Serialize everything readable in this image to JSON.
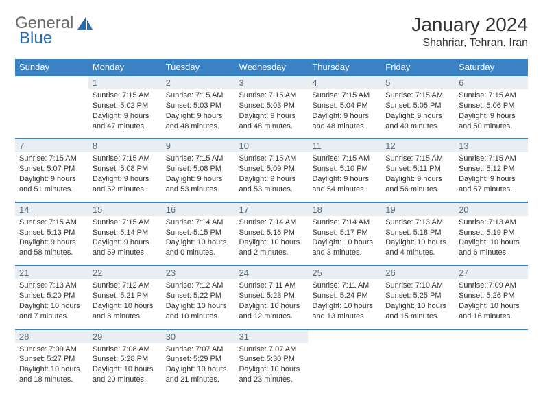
{
  "brand": {
    "part1": "General",
    "part2": "Blue",
    "color1": "#6b6b6b",
    "color2": "#2a6bb0"
  },
  "title": "January 2024",
  "location": "Shahriar, Tehran, Iran",
  "theme": {
    "header_bg": "#3b82c4",
    "header_fg": "#ffffff",
    "daynum_bg": "#e8eef2",
    "daynum_fg": "#5a6b7a",
    "row_border": "#3b82c4",
    "text_color": "#333333",
    "cell_font_size": 11,
    "header_font_size": 13,
    "title_font_size": 28,
    "location_font_size": 16
  },
  "weekdays": [
    "Sunday",
    "Monday",
    "Tuesday",
    "Wednesday",
    "Thursday",
    "Friday",
    "Saturday"
  ],
  "weeks": [
    [
      null,
      {
        "n": "1",
        "sr": "7:15 AM",
        "ss": "5:02 PM",
        "dl": "9 hours and 47 minutes."
      },
      {
        "n": "2",
        "sr": "7:15 AM",
        "ss": "5:03 PM",
        "dl": "9 hours and 48 minutes."
      },
      {
        "n": "3",
        "sr": "7:15 AM",
        "ss": "5:03 PM",
        "dl": "9 hours and 48 minutes."
      },
      {
        "n": "4",
        "sr": "7:15 AM",
        "ss": "5:04 PM",
        "dl": "9 hours and 48 minutes."
      },
      {
        "n": "5",
        "sr": "7:15 AM",
        "ss": "5:05 PM",
        "dl": "9 hours and 49 minutes."
      },
      {
        "n": "6",
        "sr": "7:15 AM",
        "ss": "5:06 PM",
        "dl": "9 hours and 50 minutes."
      }
    ],
    [
      {
        "n": "7",
        "sr": "7:15 AM",
        "ss": "5:07 PM",
        "dl": "9 hours and 51 minutes."
      },
      {
        "n": "8",
        "sr": "7:15 AM",
        "ss": "5:08 PM",
        "dl": "9 hours and 52 minutes."
      },
      {
        "n": "9",
        "sr": "7:15 AM",
        "ss": "5:08 PM",
        "dl": "9 hours and 53 minutes."
      },
      {
        "n": "10",
        "sr": "7:15 AM",
        "ss": "5:09 PM",
        "dl": "9 hours and 53 minutes."
      },
      {
        "n": "11",
        "sr": "7:15 AM",
        "ss": "5:10 PM",
        "dl": "9 hours and 54 minutes."
      },
      {
        "n": "12",
        "sr": "7:15 AM",
        "ss": "5:11 PM",
        "dl": "9 hours and 56 minutes."
      },
      {
        "n": "13",
        "sr": "7:15 AM",
        "ss": "5:12 PM",
        "dl": "9 hours and 57 minutes."
      }
    ],
    [
      {
        "n": "14",
        "sr": "7:15 AM",
        "ss": "5:13 PM",
        "dl": "9 hours and 58 minutes."
      },
      {
        "n": "15",
        "sr": "7:15 AM",
        "ss": "5:14 PM",
        "dl": "9 hours and 59 minutes."
      },
      {
        "n": "16",
        "sr": "7:14 AM",
        "ss": "5:15 PM",
        "dl": "10 hours and 0 minutes."
      },
      {
        "n": "17",
        "sr": "7:14 AM",
        "ss": "5:16 PM",
        "dl": "10 hours and 2 minutes."
      },
      {
        "n": "18",
        "sr": "7:14 AM",
        "ss": "5:17 PM",
        "dl": "10 hours and 3 minutes."
      },
      {
        "n": "19",
        "sr": "7:13 AM",
        "ss": "5:18 PM",
        "dl": "10 hours and 4 minutes."
      },
      {
        "n": "20",
        "sr": "7:13 AM",
        "ss": "5:19 PM",
        "dl": "10 hours and 6 minutes."
      }
    ],
    [
      {
        "n": "21",
        "sr": "7:13 AM",
        "ss": "5:20 PM",
        "dl": "10 hours and 7 minutes."
      },
      {
        "n": "22",
        "sr": "7:12 AM",
        "ss": "5:21 PM",
        "dl": "10 hours and 8 minutes."
      },
      {
        "n": "23",
        "sr": "7:12 AM",
        "ss": "5:22 PM",
        "dl": "10 hours and 10 minutes."
      },
      {
        "n": "24",
        "sr": "7:11 AM",
        "ss": "5:23 PM",
        "dl": "10 hours and 12 minutes."
      },
      {
        "n": "25",
        "sr": "7:11 AM",
        "ss": "5:24 PM",
        "dl": "10 hours and 13 minutes."
      },
      {
        "n": "26",
        "sr": "7:10 AM",
        "ss": "5:25 PM",
        "dl": "10 hours and 15 minutes."
      },
      {
        "n": "27",
        "sr": "7:09 AM",
        "ss": "5:26 PM",
        "dl": "10 hours and 16 minutes."
      }
    ],
    [
      {
        "n": "28",
        "sr": "7:09 AM",
        "ss": "5:27 PM",
        "dl": "10 hours and 18 minutes."
      },
      {
        "n": "29",
        "sr": "7:08 AM",
        "ss": "5:28 PM",
        "dl": "10 hours and 20 minutes."
      },
      {
        "n": "30",
        "sr": "7:07 AM",
        "ss": "5:29 PM",
        "dl": "10 hours and 21 minutes."
      },
      {
        "n": "31",
        "sr": "7:07 AM",
        "ss": "5:30 PM",
        "dl": "10 hours and 23 minutes."
      },
      null,
      null,
      null
    ]
  ],
  "labels": {
    "sunrise": "Sunrise:",
    "sunset": "Sunset:",
    "daylight": "Daylight:"
  }
}
